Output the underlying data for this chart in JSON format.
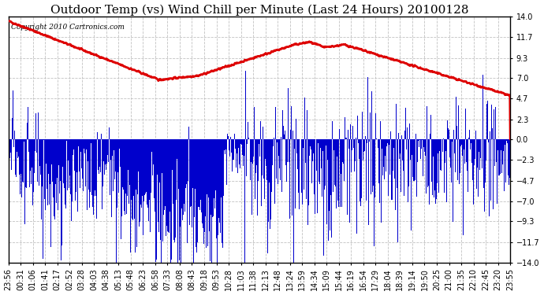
{
  "title": "Outdoor Temp (vs) Wind Chill per Minute (Last 24 Hours) 20100128",
  "copyright_text": "Copyright 2010 Cartronics.com",
  "y_ticks": [
    -14.0,
    -11.7,
    -9.3,
    -7.0,
    -4.7,
    -2.3,
    0.0,
    2.3,
    4.7,
    7.0,
    9.3,
    11.7,
    14.0
  ],
  "ylim": [
    -14.0,
    14.0
  ],
  "background_color": "#ffffff",
  "plot_bg_color": "#ffffff",
  "grid_color": "#bbbbbb",
  "red_line_color": "#dd0000",
  "blue_bar_color": "#0000cc",
  "title_fontsize": 11,
  "copyright_fontsize": 6.5,
  "tick_fontsize": 7,
  "x_tick_labels": [
    "23:56",
    "00:31",
    "01:06",
    "01:41",
    "02:17",
    "02:52",
    "03:28",
    "04:03",
    "04:38",
    "05:13",
    "05:48",
    "06:23",
    "06:58",
    "07:33",
    "08:08",
    "08:43",
    "09:18",
    "09:53",
    "10:28",
    "11:03",
    "11:38",
    "12:13",
    "12:48",
    "13:24",
    "13:59",
    "14:34",
    "15:09",
    "15:44",
    "16:19",
    "16:54",
    "17:29",
    "18:04",
    "18:39",
    "19:14",
    "19:50",
    "20:25",
    "21:00",
    "21:35",
    "22:10",
    "22:45",
    "23:20",
    "23:55"
  ],
  "n_points": 1440,
  "seed": 42
}
